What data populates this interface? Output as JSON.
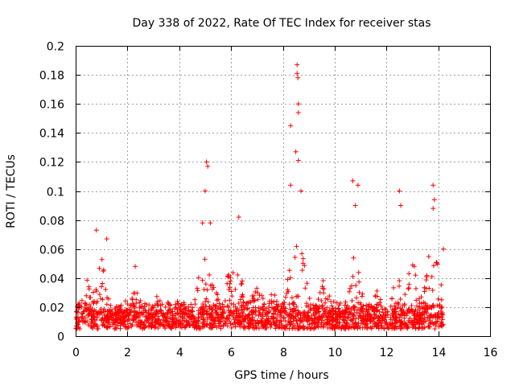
{
  "chart_data": {
    "type": "scatter",
    "title": "Day 338 of 2022, Rate Of TEC Index for receiver stas",
    "xlabel": "GPS time / hours",
    "ylabel": "ROTI / TECUs",
    "xlim": [
      0,
      16
    ],
    "ylim": [
      0,
      0.2
    ],
    "x_ticks": [
      "0",
      "2",
      "4",
      "6",
      "8",
      "10",
      "12",
      "14",
      "16"
    ],
    "y_ticks": [
      "0",
      "0.02",
      "0.04",
      "0.06",
      "0.08",
      "0.1",
      "0.12",
      "0.14",
      "0.16",
      "0.18",
      "0.2"
    ],
    "grid": true,
    "marker": "+",
    "color": "#ff0000",
    "baseline_range": [
      0.005,
      0.025
    ],
    "notable_points": [
      {
        "x": 0.8,
        "y": 0.073
      },
      {
        "x": 1.2,
        "y": 0.067
      },
      {
        "x": 2.3,
        "y": 0.048
      },
      {
        "x": 5.05,
        "y": 0.12
      },
      {
        "x": 5.1,
        "y": 0.117
      },
      {
        "x": 5.0,
        "y": 0.1
      },
      {
        "x": 5.2,
        "y": 0.078
      },
      {
        "x": 4.9,
        "y": 0.078
      },
      {
        "x": 6.3,
        "y": 0.082
      },
      {
        "x": 8.3,
        "y": 0.145
      },
      {
        "x": 8.55,
        "y": 0.187
      },
      {
        "x": 8.55,
        "y": 0.181
      },
      {
        "x": 8.58,
        "y": 0.178
      },
      {
        "x": 8.6,
        "y": 0.16
      },
      {
        "x": 8.6,
        "y": 0.154
      },
      {
        "x": 8.5,
        "y": 0.127
      },
      {
        "x": 8.6,
        "y": 0.121
      },
      {
        "x": 8.3,
        "y": 0.104
      },
      {
        "x": 8.7,
        "y": 0.1
      },
      {
        "x": 10.7,
        "y": 0.107
      },
      {
        "x": 10.9,
        "y": 0.104
      },
      {
        "x": 10.8,
        "y": 0.09
      },
      {
        "x": 12.5,
        "y": 0.1
      },
      {
        "x": 12.55,
        "y": 0.09
      },
      {
        "x": 13.8,
        "y": 0.104
      },
      {
        "x": 13.85,
        "y": 0.094
      },
      {
        "x": 13.8,
        "y": 0.088
      },
      {
        "x": 14.2,
        "y": 0.06
      }
    ]
  }
}
